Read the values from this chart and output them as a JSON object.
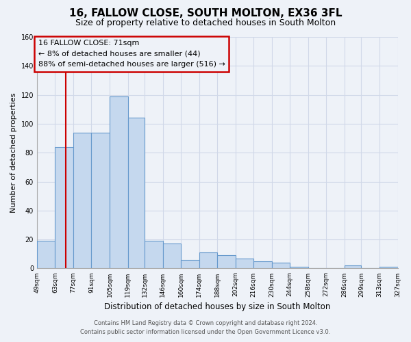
{
  "title": "16, FALLOW CLOSE, SOUTH MOLTON, EX36 3FL",
  "subtitle": "Size of property relative to detached houses in South Molton",
  "xlabel": "Distribution of detached houses by size in South Molton",
  "ylabel": "Number of detached properties",
  "bin_edges": [
    49,
    63,
    77,
    91,
    105,
    119,
    132,
    146,
    160,
    174,
    188,
    202,
    216,
    230,
    244,
    258,
    272,
    286,
    299,
    313,
    327
  ],
  "bin_labels": [
    "49sqm",
    "63sqm",
    "77sqm",
    "91sqm",
    "105sqm",
    "119sqm",
    "132sqm",
    "146sqm",
    "160sqm",
    "174sqm",
    "188sqm",
    "202sqm",
    "216sqm",
    "230sqm",
    "244sqm",
    "258sqm",
    "272sqm",
    "286sqm",
    "299sqm",
    "313sqm",
    "327sqm"
  ],
  "counts": [
    19,
    84,
    94,
    94,
    119,
    104,
    19,
    17,
    6,
    11,
    9,
    7,
    5,
    4,
    1,
    0,
    0,
    2,
    0,
    1
  ],
  "bar_color": "#c5d8ee",
  "bar_edge_color": "#6699cc",
  "vline_x": 71,
  "vline_color": "#cc0000",
  "annotation_box_color": "#cc0000",
  "annotation_line1": "16 FALLOW CLOSE: 71sqm",
  "annotation_line2": "← 8% of detached houses are smaller (44)",
  "annotation_line3": "88% of semi-detached houses are larger (516) →",
  "ylim": [
    0,
    160
  ],
  "yticks": [
    0,
    20,
    40,
    60,
    80,
    100,
    120,
    140,
    160
  ],
  "background_color": "#eef2f8",
  "grid_color": "#d0d8e8",
  "footer_line1": "Contains HM Land Registry data © Crown copyright and database right 2024.",
  "footer_line2": "Contains public sector information licensed under the Open Government Licence v3.0."
}
